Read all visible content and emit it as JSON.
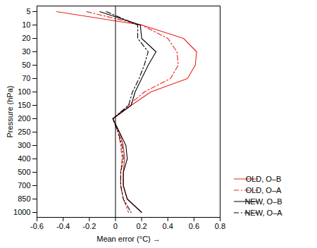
{
  "chart_data": {
    "type": "line",
    "xlabel": "Mean error (°C)",
    "ylabel": "Pressure (hPa)",
    "categories": [
      5,
      10,
      20,
      30,
      50,
      70,
      100,
      150,
      200,
      250,
      300,
      400,
      500,
      700,
      850,
      1000
    ],
    "xlim": [
      -0.6,
      0.8
    ],
    "xticks": [
      -0.6,
      -0.4,
      -0.2,
      0,
      0.2,
      0.4,
      0.6,
      0.8
    ],
    "grid": false,
    "legend": "lower right",
    "series": [
      {
        "name": "OLD, O–B",
        "color": "#e8201a",
        "line_style": "solid",
        "values": [
          -0.45,
          0.2,
          0.52,
          0.62,
          0.61,
          0.55,
          0.27,
          0.12,
          -0.02,
          0.03,
          0.06,
          0.07,
          0.06,
          0.06,
          0.09,
          0.2
        ]
      },
      {
        "name": "OLD, O–A",
        "color": "#e8201a",
        "line_style": "dashdot",
        "values": [
          -0.22,
          0.2,
          0.4,
          0.47,
          0.48,
          0.42,
          0.22,
          0.1,
          -0.02,
          0.02,
          0.04,
          0.05,
          0.04,
          0.04,
          0.06,
          0.1
        ]
      },
      {
        "name": "NEW, O–B",
        "color": "#000000",
        "line_style": "solid",
        "values": [
          -0.12,
          0.19,
          0.2,
          0.31,
          0.25,
          0.2,
          0.15,
          0.12,
          -0.02,
          0.03,
          0.08,
          0.09,
          0.06,
          0.06,
          0.09,
          0.2
        ]
      },
      {
        "name": "NEW, O–A",
        "color": "#000000",
        "line_style": "dashdot",
        "values": [
          -0.07,
          0.17,
          0.17,
          0.25,
          0.22,
          0.18,
          0.13,
          0.1,
          -0.02,
          0.02,
          0.05,
          0.06,
          0.04,
          0.04,
          0.06,
          0.12
        ]
      }
    ]
  }
}
